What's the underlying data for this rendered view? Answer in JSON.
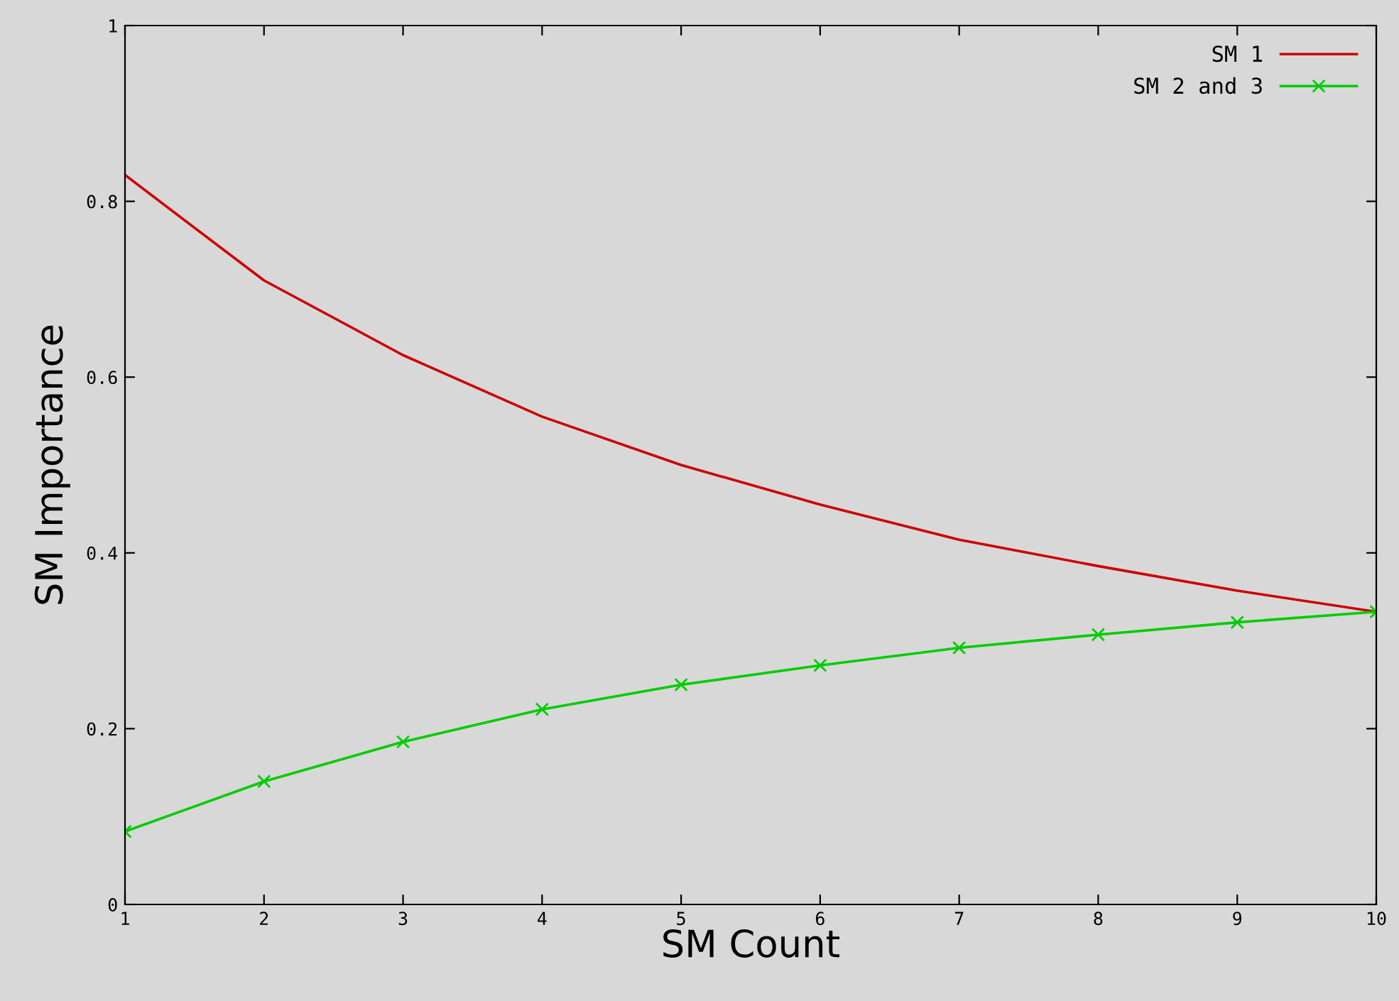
{
  "chart_data": {
    "type": "line",
    "xlabel": "SM Count",
    "ylabel": "SM Importance",
    "x": [
      1,
      2,
      3,
      4,
      5,
      6,
      7,
      8,
      9,
      10
    ],
    "series": [
      {
        "name": "SM 1",
        "color": "#cc0000",
        "marker": "none",
        "values": [
          0.83,
          0.71,
          0.625,
          0.555,
          0.5,
          0.455,
          0.415,
          0.385,
          0.357,
          0.333
        ]
      },
      {
        "name": "SM 2 and 3",
        "color": "#00cc00",
        "marker": "cross",
        "values": [
          0.083,
          0.14,
          0.185,
          0.222,
          0.25,
          0.272,
          0.292,
          0.307,
          0.321,
          0.333
        ]
      }
    ],
    "xlim": [
      1,
      10
    ],
    "ylim": [
      0,
      1
    ],
    "xticks": [
      1,
      2,
      3,
      4,
      5,
      6,
      7,
      8,
      9,
      10
    ],
    "yticks": [
      0,
      0.2,
      0.4,
      0.6,
      0.8,
      1
    ],
    "grid": false,
    "legend": "top right",
    "line_style": "solid"
  }
}
